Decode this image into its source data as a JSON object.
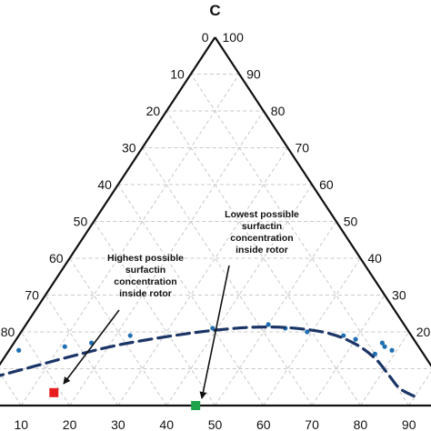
{
  "chart_data": {
    "type": "ternary-scatter",
    "title": "C",
    "left_edge_ticks": [
      "0",
      "10",
      "20",
      "30",
      "40",
      "50",
      "60",
      "70",
      "80"
    ],
    "right_edge_ticks": [
      "100",
      "90",
      "80",
      "70",
      "60",
      "50",
      "40",
      "30",
      "20"
    ],
    "bottom_ticks": [
      "10",
      "20",
      "30",
      "40",
      "50",
      "60",
      "70",
      "80",
      "90"
    ],
    "scale_max": 100,
    "grid": true,
    "series": [
      {
        "kind": "points",
        "color": "#1f6fb2",
        "points": [
          {
            "u": 2,
            "v": 15
          },
          {
            "u": 11,
            "v": 16
          },
          {
            "u": 16,
            "v": 17
          },
          {
            "u": 23,
            "v": 19
          },
          {
            "u": 39,
            "v": 21
          },
          {
            "u": 50,
            "v": 22
          },
          {
            "u": 54,
            "v": 21
          },
          {
            "u": 59,
            "v": 20
          },
          {
            "u": 67,
            "v": 19
          },
          {
            "u": 70,
            "v": 18
          },
          {
            "u": 76,
            "v": 17
          },
          {
            "u": 77,
            "v": 16
          },
          {
            "u": 79,
            "v": 15
          },
          {
            "u": 76,
            "v": 14
          }
        ]
      },
      {
        "kind": "dashed-curve",
        "color": "#1b3566",
        "points": [
          {
            "u": 0,
            "v": 7.5
          },
          {
            "u": 7,
            "v": 10.5
          },
          {
            "u": 14,
            "v": 13.5
          },
          {
            "u": 22,
            "v": 16.5
          },
          {
            "u": 32,
            "v": 19
          },
          {
            "u": 40,
            "v": 20.5
          },
          {
            "u": 48,
            "v": 21.3
          },
          {
            "u": 56,
            "v": 21
          },
          {
            "u": 64,
            "v": 19.5
          },
          {
            "u": 71,
            "v": 16.5
          },
          {
            "u": 77,
            "v": 12.5
          },
          {
            "u": 82,
            "v": 8
          },
          {
            "u": 86,
            "v": 4.5
          },
          {
            "u": 91,
            "v": 2
          }
        ]
      },
      {
        "kind": "marker",
        "name": "Highest possible surfactin concentration inside rotor",
        "color": "#e81c1c",
        "point": {
          "u": 15,
          "v": 3.5
        }
      },
      {
        "kind": "marker",
        "name": "Lowest possible surfactin concentration inside rotor",
        "color": "#1fa34a",
        "point": {
          "u": 46,
          "v": 0
        }
      }
    ],
    "annotations": [
      {
        "lines": [
          "Highest possible",
          "surfactin",
          "concentration",
          "inside rotor"
        ]
      },
      {
        "lines": [
          "Lowest possible",
          "surfactin",
          "concentration",
          "inside rotor"
        ]
      }
    ]
  }
}
